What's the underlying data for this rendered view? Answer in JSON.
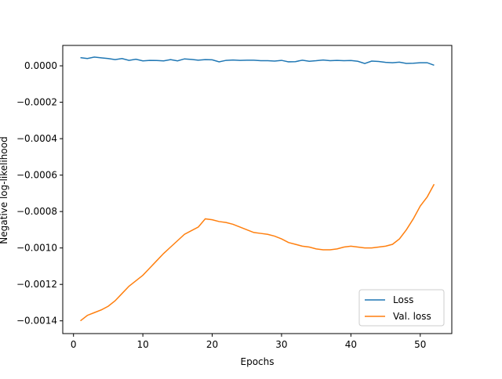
{
  "chart_data": {
    "type": "line",
    "xlabel": "Epochs",
    "ylabel": "Negative log-likelihood",
    "x": [
      1,
      2,
      3,
      4,
      5,
      6,
      7,
      8,
      9,
      10,
      11,
      12,
      13,
      14,
      15,
      16,
      17,
      18,
      19,
      20,
      21,
      22,
      23,
      24,
      25,
      26,
      27,
      28,
      29,
      30,
      31,
      32,
      33,
      34,
      35,
      36,
      37,
      38,
      39,
      40,
      41,
      42,
      43,
      44,
      45,
      46,
      47,
      48,
      49,
      50,
      51,
      52
    ],
    "series": [
      {
        "name": "Loss",
        "color": "#1f77b4",
        "values": [
          4.5e-05,
          4e-05,
          4.8e-05,
          4.4e-05,
          4e-05,
          3.4e-05,
          4e-05,
          3e-05,
          3.6e-05,
          2.7e-05,
          3e-05,
          2.9e-05,
          2.7e-05,
          3.4e-05,
          2.7e-05,
          3.8e-05,
          3.5e-05,
          3.1e-05,
          3.4e-05,
          3.3e-05,
          2.2e-05,
          3e-05,
          3.2e-05,
          3e-05,
          3.1e-05,
          3.1e-05,
          2.8e-05,
          2.8e-05,
          2.6e-05,
          3e-05,
          2.2e-05,
          2.3e-05,
          3.1e-05,
          2.5e-05,
          2.8e-05,
          3.2e-05,
          2.8e-05,
          3e-05,
          2.8e-05,
          2.9e-05,
          2.5e-05,
          1.3e-05,
          2.6e-05,
          2.4e-05,
          1.9e-05,
          1.7e-05,
          2e-05,
          1.3e-05,
          1.4e-05,
          1.7e-05,
          1.7e-05,
          3e-06
        ]
      },
      {
        "name": "Val. loss",
        "color": "#ff7f0e",
        "values": [
          -0.0014,
          -0.00137,
          -0.001355,
          -0.00134,
          -0.00132,
          -0.00129,
          -0.00125,
          -0.00121,
          -0.00118,
          -0.00115,
          -0.00111,
          -0.00107,
          -0.00103,
          -0.000995,
          -0.00096,
          -0.000925,
          -0.000905,
          -0.000885,
          -0.00084,
          -0.000845,
          -0.000855,
          -0.00086,
          -0.00087,
          -0.000885,
          -0.0009,
          -0.000915,
          -0.00092,
          -0.000925,
          -0.000935,
          -0.00095,
          -0.00097,
          -0.00098,
          -0.00099,
          -0.000995,
          -0.001005,
          -0.00101,
          -0.00101,
          -0.001005,
          -0.000995,
          -0.00099,
          -0.000995,
          -0.001,
          -0.001,
          -0.000995,
          -0.00099,
          -0.00098,
          -0.00095,
          -0.0009,
          -0.00084,
          -0.00077,
          -0.00072,
          -0.00065
        ]
      }
    ],
    "xlim": [
      -1.55,
      54.55
    ],
    "xticks": [
      0,
      10,
      20,
      30,
      40,
      50
    ],
    "ylim": [
      -0.00147,
      0.000112
    ],
    "yticks": [
      {
        "value": 0,
        "label": "0.0000"
      },
      {
        "value": -0.0002,
        "label": "−0.0002"
      },
      {
        "value": -0.0004,
        "label": "−0.0004"
      },
      {
        "value": -0.0006,
        "label": "−0.0006"
      },
      {
        "value": -0.0008,
        "label": "−0.0008"
      },
      {
        "value": -0.001,
        "label": "−0.0010"
      },
      {
        "value": -0.0012,
        "label": "−0.0012"
      },
      {
        "value": -0.0014,
        "label": "−0.0014"
      }
    ],
    "legend": "lower right"
  }
}
